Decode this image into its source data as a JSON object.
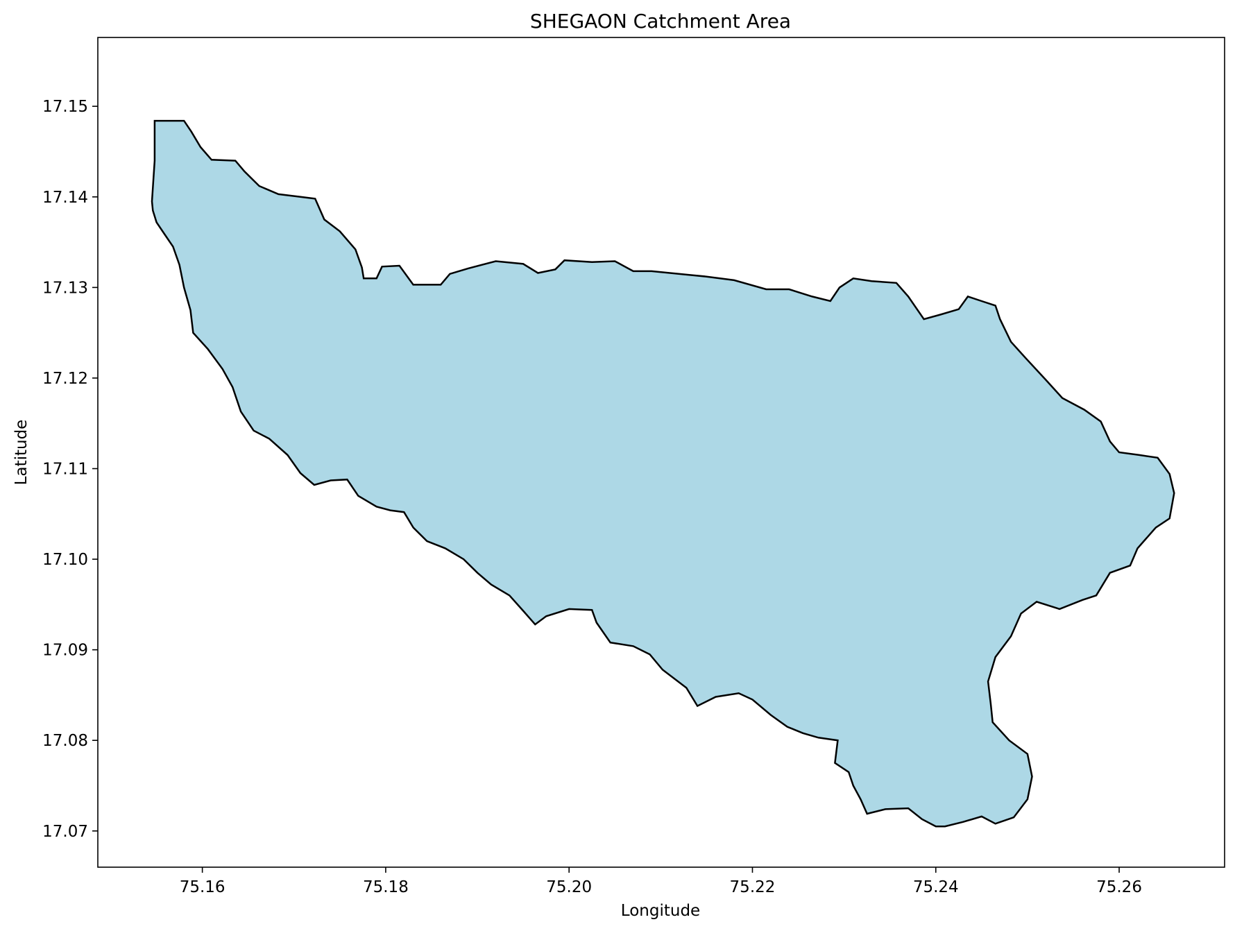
{
  "chart_data": {
    "type": "map",
    "title": "SHEGAON Catchment Area",
    "xlabel": "Longitude",
    "ylabel": "Latitude",
    "xlim": [
      75.1486,
      75.2715
    ],
    "ylim": [
      17.066,
      17.1576
    ],
    "x_ticks": [
      "75.16",
      "75.18",
      "75.20",
      "75.22",
      "75.24",
      "75.26"
    ],
    "x_tick_values": [
      75.16,
      75.18,
      75.2,
      75.22,
      75.24,
      75.26
    ],
    "y_ticks": [
      "17.07",
      "17.08",
      "17.09",
      "17.10",
      "17.11",
      "17.12",
      "17.13",
      "17.14",
      "17.15"
    ],
    "y_tick_values": [
      17.07,
      17.08,
      17.09,
      17.1,
      17.11,
      17.12,
      17.13,
      17.14,
      17.15
    ],
    "grid": false,
    "legend": "none",
    "fill_color": "#add8e6",
    "edge_color": "#000000",
    "polygon_name": "SHEGAON catchment boundary",
    "boundary": [
      [
        75.1548,
        17.1484
      ],
      [
        75.158,
        17.1484
      ],
      [
        75.1588,
        17.1472
      ],
      [
        75.1598,
        17.1455
      ],
      [
        75.161,
        17.1441
      ],
      [
        75.1636,
        17.144
      ],
      [
        75.1646,
        17.1428
      ],
      [
        75.1662,
        17.1412
      ],
      [
        75.1683,
        17.1403
      ],
      [
        75.1707,
        17.14
      ],
      [
        75.1723,
        17.1398
      ],
      [
        75.1733,
        17.1375
      ],
      [
        75.175,
        17.1362
      ],
      [
        75.1767,
        17.1342
      ],
      [
        75.1774,
        17.1322
      ],
      [
        75.1776,
        17.131
      ],
      [
        75.179,
        17.131
      ],
      [
        75.1796,
        17.1323
      ],
      [
        75.1815,
        17.1324
      ],
      [
        75.183,
        17.1303
      ],
      [
        75.186,
        17.1303
      ],
      [
        75.187,
        17.1315
      ],
      [
        75.189,
        17.1321
      ],
      [
        75.192,
        17.1329
      ],
      [
        75.195,
        17.1326
      ],
      [
        75.1966,
        17.1316
      ],
      [
        75.1985,
        17.132
      ],
      [
        75.1995,
        17.133
      ],
      [
        75.2025,
        17.1328
      ],
      [
        75.205,
        17.1329
      ],
      [
        75.207,
        17.1318
      ],
      [
        75.209,
        17.1318
      ],
      [
        75.213,
        17.1314
      ],
      [
        75.215,
        17.1312
      ],
      [
        75.218,
        17.1308
      ],
      [
        75.2215,
        17.1298
      ],
      [
        75.224,
        17.1298
      ],
      [
        75.2265,
        17.129
      ],
      [
        75.2285,
        17.1285
      ],
      [
        75.2295,
        17.13
      ],
      [
        75.231,
        17.131
      ],
      [
        75.233,
        17.1307
      ],
      [
        75.2357,
        17.1305
      ],
      [
        75.237,
        17.129
      ],
      [
        75.2387,
        17.1265
      ],
      [
        75.2405,
        17.127
      ],
      [
        75.2425,
        17.1276
      ],
      [
        75.2435,
        17.129
      ],
      [
        75.245,
        17.1285
      ],
      [
        75.2465,
        17.128
      ],
      [
        75.247,
        17.1265
      ],
      [
        75.2482,
        17.124
      ],
      [
        75.2498,
        17.1222
      ],
      [
        75.252,
        17.1198
      ],
      [
        75.2538,
        17.1178
      ],
      [
        75.2562,
        17.1165
      ],
      [
        75.258,
        17.1152
      ],
      [
        75.259,
        17.113
      ],
      [
        75.26,
        17.1118
      ],
      [
        75.2622,
        17.1115
      ],
      [
        75.2642,
        17.1112
      ],
      [
        75.2655,
        17.1094
      ],
      [
        75.266,
        17.1073
      ],
      [
        75.2655,
        17.1045
      ],
      [
        75.264,
        17.1035
      ],
      [
        75.262,
        17.1012
      ],
      [
        75.2612,
        17.0993
      ],
      [
        75.259,
        17.0985
      ],
      [
        75.2575,
        17.096
      ],
      [
        75.256,
        17.0955
      ],
      [
        75.2535,
        17.0945
      ],
      [
        75.251,
        17.0953
      ],
      [
        75.2493,
        17.094
      ],
      [
        75.2482,
        17.0915
      ],
      [
        75.2465,
        17.0892
      ],
      [
        75.2457,
        17.0865
      ],
      [
        75.246,
        17.084
      ],
      [
        75.2462,
        17.082
      ],
      [
        75.248,
        17.08
      ],
      [
        75.25,
        17.0785
      ],
      [
        75.2505,
        17.076
      ],
      [
        75.25,
        17.0735
      ],
      [
        75.2485,
        17.0715
      ],
      [
        75.2465,
        17.0708
      ],
      [
        75.245,
        17.0716
      ],
      [
        75.243,
        17.071
      ],
      [
        75.241,
        17.0705
      ],
      [
        75.24,
        17.0705
      ],
      [
        75.2385,
        17.0713
      ],
      [
        75.237,
        17.0725
      ],
      [
        75.2345,
        17.0724
      ],
      [
        75.2325,
        17.0719
      ],
      [
        75.2318,
        17.0735
      ],
      [
        75.231,
        17.075
      ],
      [
        75.2305,
        17.0765
      ],
      [
        75.229,
        17.0775
      ],
      [
        75.2293,
        17.08
      ],
      [
        75.2272,
        17.0803
      ],
      [
        75.2255,
        17.0808
      ],
      [
        75.2238,
        17.0815
      ],
      [
        75.222,
        17.0828
      ],
      [
        75.22,
        17.0845
      ],
      [
        75.2185,
        17.0852
      ],
      [
        75.216,
        17.0848
      ],
      [
        75.214,
        17.0838
      ],
      [
        75.2128,
        17.0858
      ],
      [
        75.2102,
        17.0878
      ],
      [
        75.2088,
        17.0895
      ],
      [
        75.207,
        17.0904
      ],
      [
        75.2045,
        17.0908
      ],
      [
        75.203,
        17.093
      ],
      [
        75.2025,
        17.0944
      ],
      [
        75.2,
        17.0945
      ],
      [
        75.1975,
        17.0937
      ],
      [
        75.1963,
        17.0928
      ],
      [
        75.195,
        17.0943
      ],
      [
        75.1935,
        17.096
      ],
      [
        75.1915,
        17.0972
      ],
      [
        75.19,
        17.0985
      ],
      [
        75.1885,
        17.1
      ],
      [
        75.1865,
        17.1012
      ],
      [
        75.1845,
        17.102
      ],
      [
        75.183,
        17.1035
      ],
      [
        75.182,
        17.1052
      ],
      [
        75.1805,
        17.1054
      ],
      [
        75.179,
        17.1058
      ],
      [
        75.177,
        17.107
      ],
      [
        75.1758,
        17.1088
      ],
      [
        75.174,
        17.1087
      ],
      [
        75.1722,
        17.1082
      ],
      [
        75.1707,
        17.1095
      ],
      [
        75.1693,
        17.1115
      ],
      [
        75.1673,
        17.1133
      ],
      [
        75.1656,
        17.1142
      ],
      [
        75.1642,
        17.1163
      ],
      [
        75.1633,
        17.119
      ],
      [
        75.1622,
        17.121
      ],
      [
        75.1606,
        17.1232
      ],
      [
        75.159,
        17.125
      ],
      [
        75.1587,
        17.1275
      ],
      [
        75.158,
        17.13
      ],
      [
        75.1575,
        17.1325
      ],
      [
        75.1568,
        17.1345
      ],
      [
        75.1558,
        17.136
      ],
      [
        75.155,
        17.1372
      ],
      [
        75.1546,
        17.1385
      ],
      [
        75.1545,
        17.1395
      ],
      [
        75.1548,
        17.144
      ],
      [
        75.1548,
        17.1484
      ]
    ]
  }
}
